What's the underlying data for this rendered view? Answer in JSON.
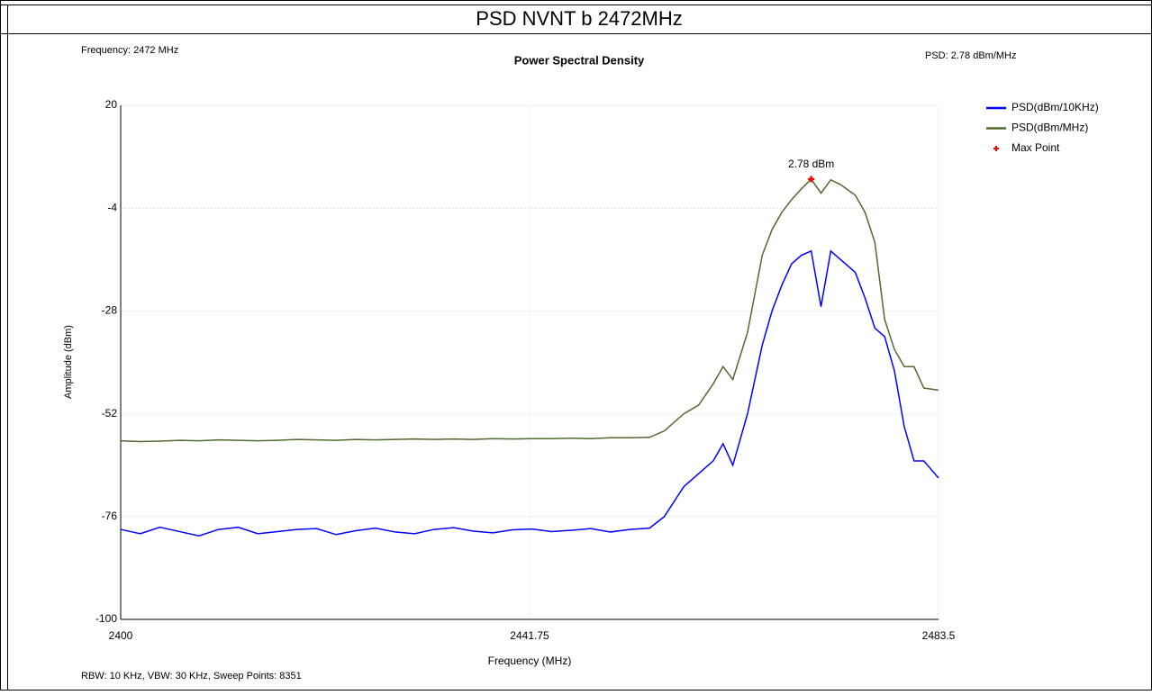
{
  "chart_data": {
    "type": "line",
    "header": "PSD NVNT b 2472MHz",
    "title": "Power Spectral Density",
    "info_left": "Frequency: 2472 MHz",
    "info_right": "PSD: 2.78 dBm/MHz",
    "footer": "RBW: 10 KHz,  VBW: 30 KHz,  Sweep Points: 8351",
    "xlabel": "Frequency (MHz)",
    "ylabel": "Amplitude (dBm)",
    "xlim": [
      2400,
      2483.5
    ],
    "xticks": [
      2400,
      2441.75,
      2483.5
    ],
    "ylim": [
      -100,
      20
    ],
    "yticks": [
      20,
      -4,
      -28,
      -52,
      -76,
      -100
    ],
    "grid": true,
    "legend": "right",
    "x": [
      2400,
      2402,
      2404,
      2406,
      2408,
      2410,
      2412,
      2414,
      2416,
      2418,
      2420,
      2422,
      2424,
      2426,
      2428,
      2430,
      2432,
      2434,
      2436,
      2438,
      2440,
      2442,
      2444,
      2446,
      2448,
      2450,
      2452,
      2454,
      2455.5,
      2457.5,
      2459,
      2460.5,
      2461.5,
      2462.5,
      2464,
      2465.5,
      2466.5,
      2467.5,
      2468.5,
      2469.5,
      2470.5,
      2471.5,
      2472.5,
      2473.5,
      2475,
      2476,
      2477,
      2478,
      2479,
      2480,
      2481,
      2482,
      2483.5
    ],
    "series": [
      {
        "name": "PSD(dBm/10KHz)",
        "color": "#0000ff",
        "values": [
          -79,
          -80,
          -78.5,
          -79.5,
          -80.5,
          -79,
          -78.5,
          -80,
          -79.5,
          -79,
          -78.8,
          -80.2,
          -79.3,
          -78.7,
          -79.6,
          -80,
          -79,
          -78.6,
          -79.4,
          -79.8,
          -79.1,
          -78.9,
          -79.5,
          -79.2,
          -78.8,
          -79.6,
          -79,
          -78.7,
          -76,
          -69,
          -66,
          -63,
          -59,
          -64,
          -52,
          -36,
          -28,
          -22,
          -17,
          -15,
          -14,
          -27,
          -14,
          -16,
          -19,
          -25,
          -32,
          -34,
          -42,
          -55,
          -63,
          -63,
          -67
        ]
      },
      {
        "name": "PSD(dBm/MHz)",
        "color": "#4f6b2f",
        "values": [
          -58.3,
          -58.5,
          -58.4,
          -58.2,
          -58.3,
          -58.1,
          -58.2,
          -58.3,
          -58.2,
          -58.0,
          -58.1,
          -58.2,
          -58.0,
          -58.1,
          -58.0,
          -57.9,
          -58.0,
          -57.9,
          -58.0,
          -57.8,
          -57.9,
          -57.8,
          -57.8,
          -57.7,
          -57.8,
          -57.6,
          -57.6,
          -57.5,
          -56,
          -52,
          -50,
          -45,
          -41,
          -44,
          -33,
          -15,
          -9,
          -5,
          -2,
          0.5,
          2.78,
          -0.5,
          2.6,
          1.5,
          -1,
          -5,
          -12,
          -30,
          -37,
          -41,
          -41,
          -46,
          -46.5
        ]
      }
    ],
    "max_point": {
      "name": "Max Point",
      "color": "#ff0000",
      "x": 2470.5,
      "y": 2.78,
      "label": "2.78 dBm"
    }
  }
}
